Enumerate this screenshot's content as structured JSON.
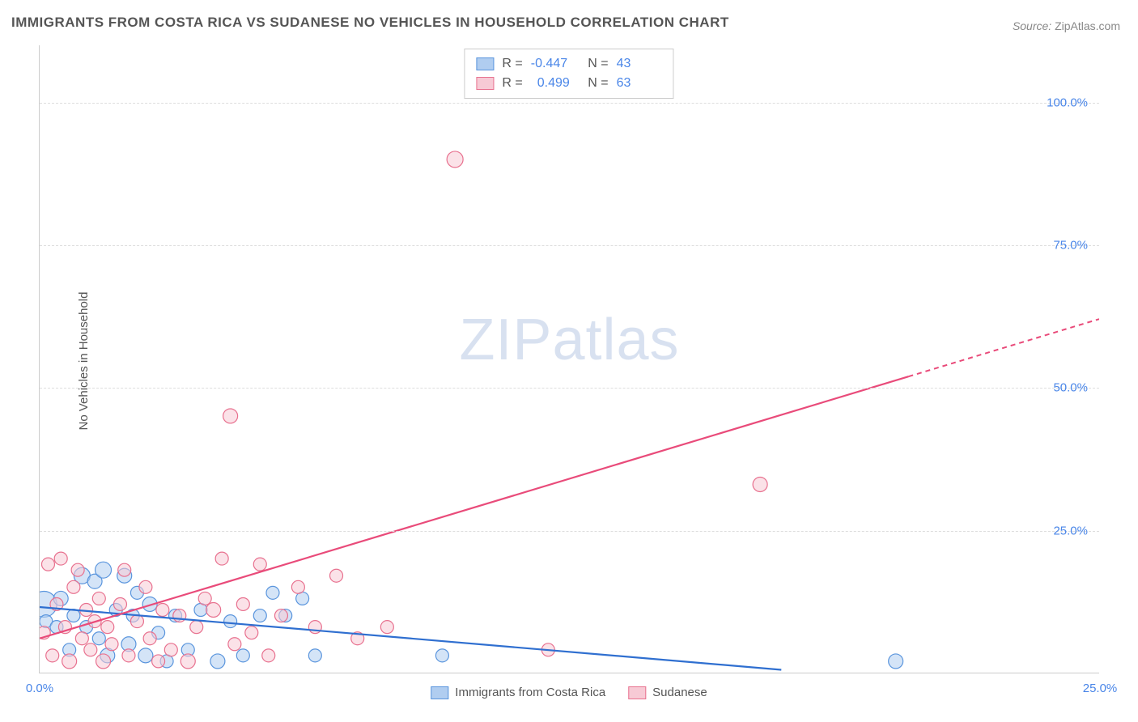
{
  "title": "IMMIGRANTS FROM COSTA RICA VS SUDANESE NO VEHICLES IN HOUSEHOLD CORRELATION CHART",
  "source_label": "Source:",
  "source_name": "ZipAtlas.com",
  "y_axis_label": "No Vehicles in Household",
  "watermark": "ZIPatlas",
  "chart": {
    "type": "scatter",
    "xlim": [
      0,
      25
    ],
    "ylim": [
      0,
      110
    ],
    "yticks": [
      25,
      50,
      75,
      100
    ],
    "ytick_labels": [
      "25.0%",
      "50.0%",
      "75.0%",
      "100.0%"
    ],
    "xticks": [
      0,
      25
    ],
    "xtick_labels": [
      "0.0%",
      "25.0%"
    ],
    "grid_color": "#dddddd",
    "axis_color": "#cccccc",
    "background_color": "#ffffff",
    "series": [
      {
        "name": "Immigrants from Costa Rica",
        "fill": "#b0cdf0",
        "stroke": "#5a95dd",
        "line_color": "#2f6fd0",
        "R": "-0.447",
        "N": "43",
        "trend": {
          "x1": 0,
          "y1": 11.5,
          "x2": 17.5,
          "y2": 0.5
        },
        "points": [
          {
            "x": 0.1,
            "y": 12,
            "r": 16
          },
          {
            "x": 0.15,
            "y": 9,
            "r": 8
          },
          {
            "x": 0.4,
            "y": 8,
            "r": 8
          },
          {
            "x": 0.5,
            "y": 13,
            "r": 9
          },
          {
            "x": 0.7,
            "y": 4,
            "r": 8
          },
          {
            "x": 0.8,
            "y": 10,
            "r": 8
          },
          {
            "x": 1.0,
            "y": 17,
            "r": 10
          },
          {
            "x": 1.1,
            "y": 8,
            "r": 8
          },
          {
            "x": 1.3,
            "y": 16,
            "r": 9
          },
          {
            "x": 1.4,
            "y": 6,
            "r": 8
          },
          {
            "x": 1.5,
            "y": 18,
            "r": 10
          },
          {
            "x": 1.6,
            "y": 3,
            "r": 9
          },
          {
            "x": 1.8,
            "y": 11,
            "r": 8
          },
          {
            "x": 2.0,
            "y": 17,
            "r": 9
          },
          {
            "x": 2.1,
            "y": 5,
            "r": 9
          },
          {
            "x": 2.2,
            "y": 10,
            "r": 8
          },
          {
            "x": 2.3,
            "y": 14,
            "r": 8
          },
          {
            "x": 2.5,
            "y": 3,
            "r": 9
          },
          {
            "x": 2.6,
            "y": 12,
            "r": 9
          },
          {
            "x": 2.8,
            "y": 7,
            "r": 8
          },
          {
            "x": 3.0,
            "y": 2,
            "r": 8
          },
          {
            "x": 3.2,
            "y": 10,
            "r": 8
          },
          {
            "x": 3.5,
            "y": 4,
            "r": 8
          },
          {
            "x": 3.8,
            "y": 11,
            "r": 8
          },
          {
            "x": 4.2,
            "y": 2,
            "r": 9
          },
          {
            "x": 4.5,
            "y": 9,
            "r": 8
          },
          {
            "x": 4.8,
            "y": 3,
            "r": 8
          },
          {
            "x": 5.2,
            "y": 10,
            "r": 8
          },
          {
            "x": 5.5,
            "y": 14,
            "r": 8
          },
          {
            "x": 5.8,
            "y": 10,
            "r": 8
          },
          {
            "x": 6.2,
            "y": 13,
            "r": 8
          },
          {
            "x": 6.5,
            "y": 3,
            "r": 8
          },
          {
            "x": 9.5,
            "y": 3,
            "r": 8
          },
          {
            "x": 20.2,
            "y": 2,
            "r": 9
          }
        ]
      },
      {
        "name": "Sudanese",
        "fill": "#f7cad5",
        "stroke": "#e8718f",
        "line_color": "#e94b7a",
        "R": "0.499",
        "N": "63",
        "trend": {
          "x1": 0,
          "y1": 6,
          "x2": 25,
          "y2": 62
        },
        "trend_dash_from_x": 20.5,
        "points": [
          {
            "x": 0.1,
            "y": 7,
            "r": 8
          },
          {
            "x": 0.2,
            "y": 19,
            "r": 8
          },
          {
            "x": 0.3,
            "y": 3,
            "r": 8
          },
          {
            "x": 0.4,
            "y": 12,
            "r": 8
          },
          {
            "x": 0.5,
            "y": 20,
            "r": 8
          },
          {
            "x": 0.6,
            "y": 8,
            "r": 8
          },
          {
            "x": 0.7,
            "y": 2,
            "r": 9
          },
          {
            "x": 0.8,
            "y": 15,
            "r": 8
          },
          {
            "x": 0.9,
            "y": 18,
            "r": 8
          },
          {
            "x": 1.0,
            "y": 6,
            "r": 8
          },
          {
            "x": 1.1,
            "y": 11,
            "r": 8
          },
          {
            "x": 1.2,
            "y": 4,
            "r": 8
          },
          {
            "x": 1.3,
            "y": 9,
            "r": 8
          },
          {
            "x": 1.4,
            "y": 13,
            "r": 8
          },
          {
            "x": 1.5,
            "y": 2,
            "r": 9
          },
          {
            "x": 1.6,
            "y": 8,
            "r": 8
          },
          {
            "x": 1.7,
            "y": 5,
            "r": 8
          },
          {
            "x": 1.9,
            "y": 12,
            "r": 8
          },
          {
            "x": 2.0,
            "y": 18,
            "r": 8
          },
          {
            "x": 2.1,
            "y": 3,
            "r": 8
          },
          {
            "x": 2.3,
            "y": 9,
            "r": 8
          },
          {
            "x": 2.5,
            "y": 15,
            "r": 8
          },
          {
            "x": 2.6,
            "y": 6,
            "r": 8
          },
          {
            "x": 2.8,
            "y": 2,
            "r": 8
          },
          {
            "x": 2.9,
            "y": 11,
            "r": 8
          },
          {
            "x": 3.1,
            "y": 4,
            "r": 8
          },
          {
            "x": 3.3,
            "y": 10,
            "r": 8
          },
          {
            "x": 3.5,
            "y": 2,
            "r": 9
          },
          {
            "x": 3.7,
            "y": 8,
            "r": 8
          },
          {
            "x": 3.9,
            "y": 13,
            "r": 8
          },
          {
            "x": 4.1,
            "y": 11,
            "r": 9
          },
          {
            "x": 4.3,
            "y": 20,
            "r": 8
          },
          {
            "x": 4.5,
            "y": 45,
            "r": 9
          },
          {
            "x": 4.6,
            "y": 5,
            "r": 8
          },
          {
            "x": 4.8,
            "y": 12,
            "r": 8
          },
          {
            "x": 5.0,
            "y": 7,
            "r": 8
          },
          {
            "x": 5.2,
            "y": 19,
            "r": 8
          },
          {
            "x": 5.4,
            "y": 3,
            "r": 8
          },
          {
            "x": 5.7,
            "y": 10,
            "r": 8
          },
          {
            "x": 6.1,
            "y": 15,
            "r": 8
          },
          {
            "x": 6.5,
            "y": 8,
            "r": 8
          },
          {
            "x": 7.0,
            "y": 17,
            "r": 8
          },
          {
            "x": 7.5,
            "y": 6,
            "r": 8
          },
          {
            "x": 8.2,
            "y": 8,
            "r": 8
          },
          {
            "x": 9.8,
            "y": 90,
            "r": 10
          },
          {
            "x": 12.0,
            "y": 4,
            "r": 8
          },
          {
            "x": 17.0,
            "y": 33,
            "r": 9
          }
        ]
      }
    ],
    "legend_bottom": [
      {
        "label": "Immigrants from Costa Rica",
        "fill": "#b0cdf0",
        "stroke": "#5a95dd"
      },
      {
        "label": "Sudanese",
        "fill": "#f7cad5",
        "stroke": "#e8718f"
      }
    ]
  }
}
